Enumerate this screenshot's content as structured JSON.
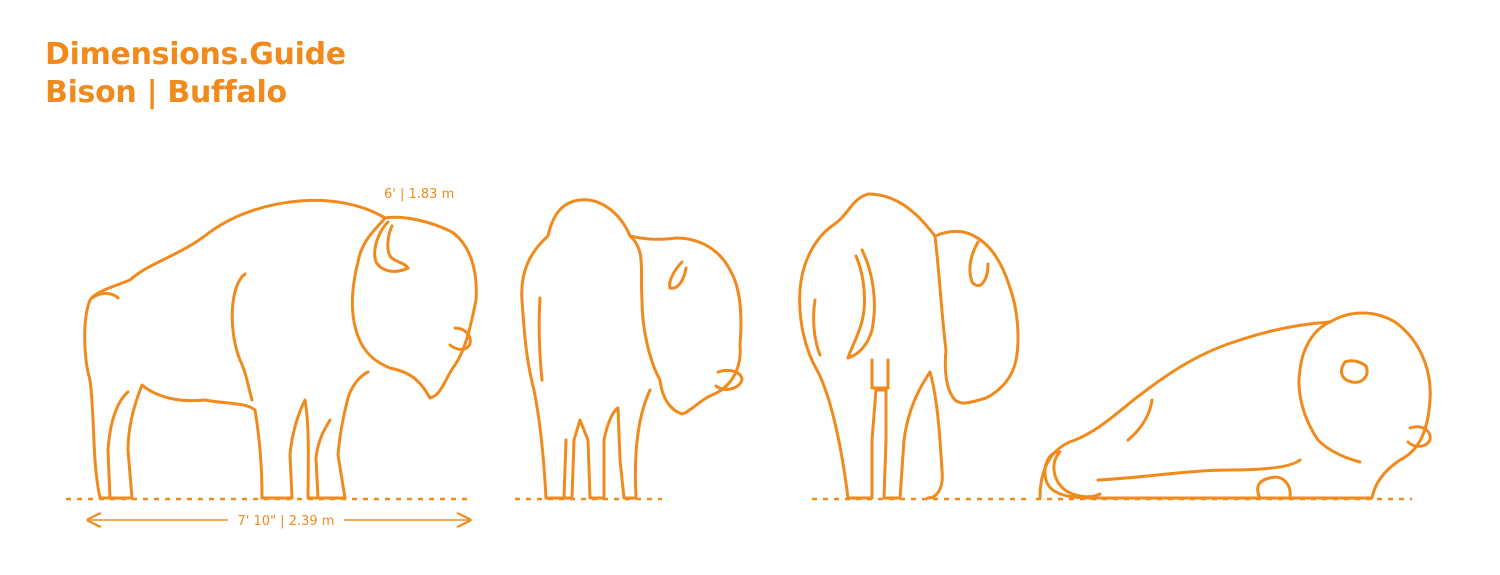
{
  "header": {
    "brand": "Dimensions.Guide",
    "subject": "Bison | Buffalo"
  },
  "dimensions": {
    "height": "6' | 1.83 m",
    "length": "7' 10\" | 2.39 m"
  },
  "colors": {
    "accent": "#f08a1d"
  }
}
